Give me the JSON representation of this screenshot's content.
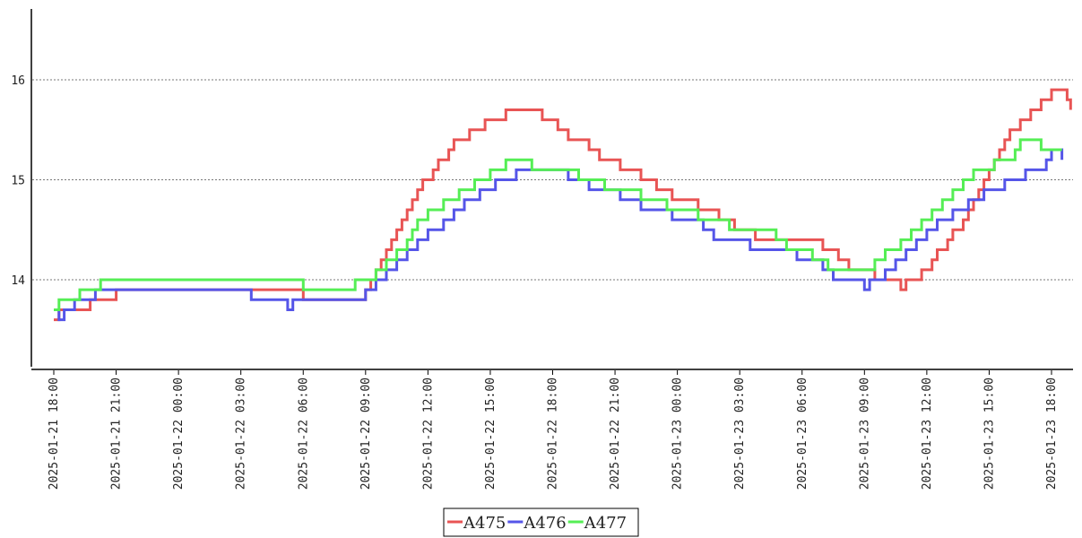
{
  "chart_data": {
    "type": "line",
    "title": "",
    "xlabel": "",
    "ylabel": "",
    "ylim": [
      13.1,
      16.7
    ],
    "y_ticks": [
      14,
      15,
      16
    ],
    "y_tick_labels": [
      "14",
      "15",
      "16"
    ],
    "grid": "horizontal dotted",
    "legend_position": "bottom-center",
    "x_ticks": [
      "2025-01-21 18:00",
      "2025-01-21 21:00",
      "2025-01-22 00:00",
      "2025-01-22 03:00",
      "2025-01-22 06:00",
      "2025-01-22 09:00",
      "2025-01-22 12:00",
      "2025-01-22 15:00",
      "2025-01-22 18:00",
      "2025-01-22 21:00",
      "2025-01-23 00:00",
      "2025-01-23 03:00",
      "2025-01-23 06:00",
      "2025-01-23 09:00",
      "2025-01-23 12:00",
      "2025-01-23 15:00",
      "2025-01-23 18:00"
    ],
    "series": [
      {
        "name": "A475",
        "color": "#e85454",
        "points": [
          [
            "2025-01-21 18:00",
            13.6
          ],
          [
            "2025-01-21 18:15",
            13.7
          ],
          [
            "2025-01-21 19:45",
            13.8
          ],
          [
            "2025-01-21 21:00",
            13.9
          ],
          [
            "2025-01-22 06:00",
            13.8
          ],
          [
            "2025-01-22 09:00",
            13.9
          ],
          [
            "2025-01-22 09:15",
            14.0
          ],
          [
            "2025-01-22 09:30",
            14.1
          ],
          [
            "2025-01-22 09:45",
            14.2
          ],
          [
            "2025-01-22 10:00",
            14.3
          ],
          [
            "2025-01-22 10:15",
            14.4
          ],
          [
            "2025-01-22 10:30",
            14.5
          ],
          [
            "2025-01-22 10:45",
            14.6
          ],
          [
            "2025-01-22 11:00",
            14.7
          ],
          [
            "2025-01-22 11:15",
            14.8
          ],
          [
            "2025-01-22 11:30",
            14.9
          ],
          [
            "2025-01-22 11:45",
            15.0
          ],
          [
            "2025-01-22 12:15",
            15.1
          ],
          [
            "2025-01-22 12:30",
            15.2
          ],
          [
            "2025-01-22 13:00",
            15.3
          ],
          [
            "2025-01-22 13:15",
            15.4
          ],
          [
            "2025-01-22 14:00",
            15.5
          ],
          [
            "2025-01-22 14:45",
            15.6
          ],
          [
            "2025-01-22 15:45",
            15.7
          ],
          [
            "2025-01-22 17:30",
            15.6
          ],
          [
            "2025-01-22 18:15",
            15.5
          ],
          [
            "2025-01-22 18:45",
            15.4
          ],
          [
            "2025-01-22 19:45",
            15.3
          ],
          [
            "2025-01-22 20:15",
            15.2
          ],
          [
            "2025-01-22 21:15",
            15.1
          ],
          [
            "2025-01-22 22:15",
            15.0
          ],
          [
            "2025-01-22 23:00",
            14.9
          ],
          [
            "2025-01-22 23:45",
            14.8
          ],
          [
            "2025-01-23 01:00",
            14.7
          ],
          [
            "2025-01-23 02:00",
            14.6
          ],
          [
            "2025-01-23 02:45",
            14.5
          ],
          [
            "2025-01-23 03:45",
            14.4
          ],
          [
            "2025-01-23 07:00",
            14.3
          ],
          [
            "2025-01-23 07:45",
            14.2
          ],
          [
            "2025-01-23 08:15",
            14.1
          ],
          [
            "2025-01-23 09:30",
            14.0
          ],
          [
            "2025-01-23 10:45",
            13.9
          ],
          [
            "2025-01-23 11:00",
            14.0
          ],
          [
            "2025-01-23 11:45",
            14.1
          ],
          [
            "2025-01-23 12:15",
            14.2
          ],
          [
            "2025-01-23 12:30",
            14.3
          ],
          [
            "2025-01-23 13:00",
            14.4
          ],
          [
            "2025-01-23 13:15",
            14.5
          ],
          [
            "2025-01-23 13:45",
            14.6
          ],
          [
            "2025-01-23 14:00",
            14.7
          ],
          [
            "2025-01-23 14:15",
            14.8
          ],
          [
            "2025-01-23 14:30",
            14.9
          ],
          [
            "2025-01-23 14:45",
            15.0
          ],
          [
            "2025-01-23 15:00",
            15.1
          ],
          [
            "2025-01-23 15:15",
            15.2
          ],
          [
            "2025-01-23 15:30",
            15.3
          ],
          [
            "2025-01-23 15:45",
            15.4
          ],
          [
            "2025-01-23 16:00",
            15.5
          ],
          [
            "2025-01-23 16:30",
            15.6
          ],
          [
            "2025-01-23 17:00",
            15.7
          ],
          [
            "2025-01-23 17:30",
            15.8
          ],
          [
            "2025-01-23 18:00",
            15.9
          ],
          [
            "2025-01-23 18:45",
            15.8
          ],
          [
            "2025-01-23 18:55",
            15.7
          ]
        ]
      },
      {
        "name": "A476",
        "color": "#5555e8",
        "points": [
          [
            "2025-01-21 18:00",
            13.7
          ],
          [
            "2025-01-21 18:15",
            13.6
          ],
          [
            "2025-01-21 18:30",
            13.7
          ],
          [
            "2025-01-21 19:00",
            13.8
          ],
          [
            "2025-01-21 20:00",
            13.9
          ],
          [
            "2025-01-22 03:30",
            13.8
          ],
          [
            "2025-01-22 05:00",
            13.8
          ],
          [
            "2025-01-22 05:15",
            13.7
          ],
          [
            "2025-01-22 05:30",
            13.8
          ],
          [
            "2025-01-22 09:00",
            13.9
          ],
          [
            "2025-01-22 09:30",
            14.0
          ],
          [
            "2025-01-22 10:00",
            14.1
          ],
          [
            "2025-01-22 10:30",
            14.2
          ],
          [
            "2025-01-22 11:00",
            14.3
          ],
          [
            "2025-01-22 11:30",
            14.4
          ],
          [
            "2025-01-22 12:00",
            14.5
          ],
          [
            "2025-01-22 12:45",
            14.6
          ],
          [
            "2025-01-22 13:15",
            14.7
          ],
          [
            "2025-01-22 13:45",
            14.8
          ],
          [
            "2025-01-22 14:30",
            14.9
          ],
          [
            "2025-01-22 15:15",
            15.0
          ],
          [
            "2025-01-22 16:15",
            15.1
          ],
          [
            "2025-01-22 18:45",
            15.0
          ],
          [
            "2025-01-22 19:45",
            14.9
          ],
          [
            "2025-01-22 21:15",
            14.8
          ],
          [
            "2025-01-22 22:15",
            14.7
          ],
          [
            "2025-01-22 23:45",
            14.6
          ],
          [
            "2025-01-23 01:15",
            14.5
          ],
          [
            "2025-01-23 01:45",
            14.4
          ],
          [
            "2025-01-23 03:00",
            14.4
          ],
          [
            "2025-01-23 03:30",
            14.3
          ],
          [
            "2025-01-23 05:45",
            14.2
          ],
          [
            "2025-01-23 06:30",
            14.2
          ],
          [
            "2025-01-23 07:00",
            14.1
          ],
          [
            "2025-01-23 07:30",
            14.0
          ],
          [
            "2025-01-23 08:30",
            14.0
          ],
          [
            "2025-01-23 09:00",
            13.9
          ],
          [
            "2025-01-23 09:15",
            14.0
          ],
          [
            "2025-01-23 10:00",
            14.1
          ],
          [
            "2025-01-23 10:30",
            14.2
          ],
          [
            "2025-01-23 11:00",
            14.3
          ],
          [
            "2025-01-23 11:30",
            14.4
          ],
          [
            "2025-01-23 12:00",
            14.5
          ],
          [
            "2025-01-23 12:30",
            14.6
          ],
          [
            "2025-01-23 13:15",
            14.7
          ],
          [
            "2025-01-23 14:00",
            14.8
          ],
          [
            "2025-01-23 14:45",
            14.9
          ],
          [
            "2025-01-23 15:45",
            15.0
          ],
          [
            "2025-01-23 16:45",
            15.1
          ],
          [
            "2025-01-23 17:45",
            15.2
          ],
          [
            "2025-01-23 18:00",
            15.3
          ],
          [
            "2025-01-23 18:30",
            15.2
          ]
        ]
      },
      {
        "name": "A477",
        "color": "#55ee55",
        "points": [
          [
            "2025-01-21 18:00",
            13.7
          ],
          [
            "2025-01-21 18:15",
            13.8
          ],
          [
            "2025-01-21 19:15",
            13.9
          ],
          [
            "2025-01-21 20:15",
            14.0
          ],
          [
            "2025-01-22 04:00",
            14.0
          ],
          [
            "2025-01-22 06:00",
            13.9
          ],
          [
            "2025-01-22 08:15",
            13.9
          ],
          [
            "2025-01-22 08:30",
            14.0
          ],
          [
            "2025-01-22 09:00",
            14.0
          ],
          [
            "2025-01-22 09:15",
            14.0
          ],
          [
            "2025-01-22 09:30",
            14.1
          ],
          [
            "2025-01-22 10:00",
            14.2
          ],
          [
            "2025-01-22 10:30",
            14.3
          ],
          [
            "2025-01-22 11:00",
            14.4
          ],
          [
            "2025-01-22 11:15",
            14.5
          ],
          [
            "2025-01-22 11:30",
            14.6
          ],
          [
            "2025-01-22 12:00",
            14.7
          ],
          [
            "2025-01-22 12:45",
            14.8
          ],
          [
            "2025-01-22 13:30",
            14.9
          ],
          [
            "2025-01-22 14:15",
            15.0
          ],
          [
            "2025-01-22 15:00",
            15.1
          ],
          [
            "2025-01-22 15:45",
            15.2
          ],
          [
            "2025-01-22 16:30",
            15.2
          ],
          [
            "2025-01-22 17:00",
            15.1
          ],
          [
            "2025-01-22 19:15",
            15.0
          ],
          [
            "2025-01-22 20:30",
            14.9
          ],
          [
            "2025-01-22 22:15",
            14.8
          ],
          [
            "2025-01-22 23:30",
            14.7
          ],
          [
            "2025-01-23 01:00",
            14.6
          ],
          [
            "2025-01-23 02:30",
            14.5
          ],
          [
            "2025-01-23 04:45",
            14.4
          ],
          [
            "2025-01-23 05:15",
            14.3
          ],
          [
            "2025-01-23 06:30",
            14.2
          ],
          [
            "2025-01-23 07:15",
            14.1
          ],
          [
            "2025-01-23 09:30",
            14.2
          ],
          [
            "2025-01-23 10:00",
            14.3
          ],
          [
            "2025-01-23 10:45",
            14.4
          ],
          [
            "2025-01-23 11:15",
            14.5
          ],
          [
            "2025-01-23 11:45",
            14.6
          ],
          [
            "2025-01-23 12:15",
            14.7
          ],
          [
            "2025-01-23 12:45",
            14.8
          ],
          [
            "2025-01-23 13:15",
            14.9
          ],
          [
            "2025-01-23 13:45",
            15.0
          ],
          [
            "2025-01-23 14:15",
            15.1
          ],
          [
            "2025-01-23 15:15",
            15.2
          ],
          [
            "2025-01-23 16:15",
            15.3
          ],
          [
            "2025-01-23 16:30",
            15.4
          ],
          [
            "2025-01-23 17:30",
            15.3
          ],
          [
            "2025-01-23 18:30",
            15.3
          ]
        ]
      }
    ]
  }
}
